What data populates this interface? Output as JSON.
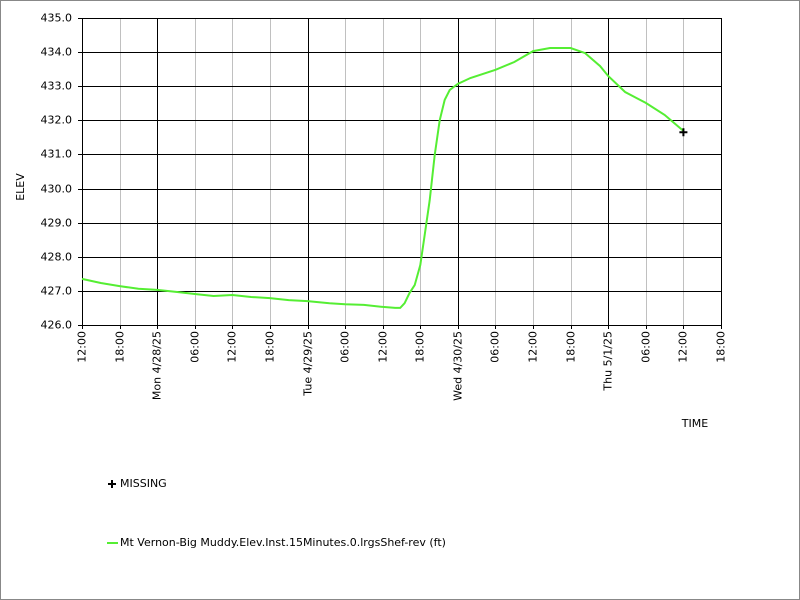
{
  "chart_data": {
    "type": "line",
    "y_label": "ELEV",
    "x_label": "TIME",
    "xlim": [
      0,
      102
    ],
    "ylim": [
      426,
      435
    ],
    "xticks": [
      {
        "value": 0,
        "label": "12:00"
      },
      {
        "value": 6,
        "label": "18:00"
      },
      {
        "value": 12,
        "label": "Mon 4/28/25"
      },
      {
        "value": 18,
        "label": "06:00"
      },
      {
        "value": 24,
        "label": "12:00"
      },
      {
        "value": 30,
        "label": "18:00"
      },
      {
        "value": 36,
        "label": "Tue 4/29/25"
      },
      {
        "value": 42,
        "label": "06:00"
      },
      {
        "value": 48,
        "label": "12:00"
      },
      {
        "value": 54,
        "label": "18:00"
      },
      {
        "value": 60,
        "label": "Wed 4/30/25"
      },
      {
        "value": 66,
        "label": "06:00"
      },
      {
        "value": 72,
        "label": "12:00"
      },
      {
        "value": 78,
        "label": "18:00"
      },
      {
        "value": 84,
        "label": "Thu 5/1/25"
      },
      {
        "value": 90,
        "label": "06:00"
      },
      {
        "value": 96,
        "label": "12:00"
      },
      {
        "value": 102,
        "label": "18:00"
      }
    ],
    "yticks": [
      {
        "value": 426,
        "label": "426.0"
      },
      {
        "value": 427,
        "label": "427.0"
      },
      {
        "value": 428,
        "label": "428.0"
      },
      {
        "value": 429,
        "label": "429.0"
      },
      {
        "value": 430,
        "label": "430.0"
      },
      {
        "value": 431,
        "label": "431.0"
      },
      {
        "value": 432,
        "label": "432.0"
      },
      {
        "value": 433,
        "label": "433.0"
      },
      {
        "value": 434,
        "label": "434.0"
      },
      {
        "value": 435,
        "label": "435.0"
      }
    ],
    "grid": true,
    "series": [
      {
        "name": "MISSING",
        "color": "#000000",
        "marker": "plus",
        "x": [
          96
        ],
        "values": [
          431.65
        ]
      },
      {
        "name": "Mt Vernon-Big Muddy.Elev.Inst.15Minutes.0.lrgsShef-rev (ft)",
        "color": "#55ee33",
        "marker": "line",
        "x": [
          0,
          3,
          6,
          9,
          12,
          15,
          18,
          21,
          24,
          27,
          30,
          33,
          36,
          39.5,
          42,
          45,
          48,
          50,
          50.8,
          51.5,
          52.3,
          53.1,
          54,
          54.7,
          55.5,
          56.3,
          57.1,
          57.9,
          58.7,
          60,
          62,
          66,
          69,
          72,
          74.7,
          78,
          80.3,
          82.7,
          84,
          86.7,
          90,
          93,
          96
        ],
        "values": [
          427.35,
          427.23,
          427.14,
          427.06,
          427.03,
          426.97,
          426.91,
          426.85,
          426.88,
          426.82,
          426.79,
          426.73,
          426.7,
          426.64,
          426.61,
          426.59,
          426.53,
          426.5,
          426.5,
          426.64,
          426.94,
          427.17,
          427.76,
          428.64,
          429.66,
          430.98,
          432.0,
          432.6,
          432.89,
          433.07,
          433.24,
          433.48,
          433.71,
          434.03,
          434.12,
          434.12,
          433.97,
          433.59,
          433.3,
          432.83,
          432.51,
          432.16,
          431.69
        ]
      }
    ]
  }
}
